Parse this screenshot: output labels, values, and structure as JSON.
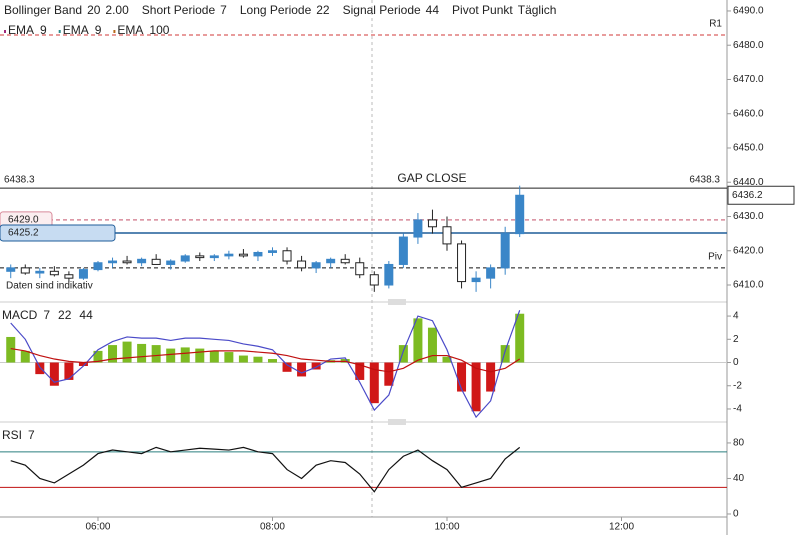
{
  "chart_data": [
    {
      "type": "candlestick",
      "header": [
        {
          "name": "Bollinger Band",
          "params": [
            "20",
            "2.00"
          ]
        },
        {
          "name": "Short Periode",
          "params": [
            "7"
          ]
        },
        {
          "name": "Long Periode",
          "params": [
            "22"
          ]
        },
        {
          "name": "Signal Periode",
          "params": [
            "44"
          ]
        },
        {
          "name": "Pivot Punkt",
          "params": [
            "Täglich"
          ]
        }
      ],
      "ema": [
        {
          "name": "EMA",
          "period": "9",
          "color": "#a0287a"
        },
        {
          "name": "EMA",
          "period": "9",
          "color": "#2a8a8a"
        },
        {
          "name": "EMA",
          "period": "100",
          "color": "#b86a1c"
        }
      ],
      "note": "Daten sind indikativ",
      "x": [
        5.0,
        5.1667,
        5.3333,
        5.5,
        5.6667,
        5.8333,
        6.0,
        6.1667,
        6.3333,
        6.5,
        6.6667,
        6.8333,
        7.0,
        7.1667,
        7.3333,
        7.5,
        7.6667,
        7.8333,
        8.0,
        8.1667,
        8.3333,
        8.5,
        8.6667,
        8.8333,
        9.0,
        9.1667,
        9.3333,
        9.5,
        9.6667,
        9.8333,
        10.0,
        10.1667,
        10.3333,
        10.5,
        10.6667,
        10.8333
      ],
      "open": [
        6414,
        6415,
        6413.5,
        6414,
        6413,
        6412,
        6414.5,
        6416.5,
        6417,
        6416.5,
        6417.5,
        6416,
        6417,
        6418.5,
        6418,
        6418.5,
        6419,
        6418.5,
        6419.5,
        6420,
        6417,
        6415,
        6416.5,
        6417.5,
        6416.5,
        6413,
        6410,
        6416,
        6424,
        6429,
        6427,
        6422,
        6411,
        6412,
        6415,
        6425
      ],
      "high": [
        6416,
        6416,
        6415,
        6415.5,
        6414,
        6415,
        6417,
        6418,
        6418.5,
        6418,
        6419,
        6417.5,
        6419,
        6419.5,
        6419,
        6420,
        6420.5,
        6420,
        6421,
        6421,
        6418.5,
        6417,
        6418,
        6419,
        6418,
        6414,
        6417,
        6425,
        6431,
        6432,
        6430,
        6423,
        6414,
        6416,
        6427,
        6439
      ],
      "low": [
        6412,
        6413,
        6412,
        6412.5,
        6411,
        6411.5,
        6414,
        6415,
        6416,
        6415.5,
        6416,
        6414.5,
        6416.5,
        6417,
        6417,
        6417.5,
        6418,
        6417,
        6418.5,
        6416,
        6414,
        6413.5,
        6415,
        6416,
        6412,
        6408,
        6409,
        6415,
        6422,
        6425,
        6420,
        6409,
        6408,
        6409,
        6413,
        6424
      ],
      "close": [
        6415,
        6413.5,
        6414,
        6413,
        6412,
        6414.5,
        6416.5,
        6417,
        6416.5,
        6417.5,
        6416,
        6417,
        6418.5,
        6418,
        6418.5,
        6419,
        6418.5,
        6419.5,
        6420,
        6417,
        6415,
        6416.5,
        6417.5,
        6416.5,
        6413,
        6410,
        6416,
        6424,
        6429,
        6427,
        6422,
        6411,
        6412,
        6415,
        6425,
        6436.2
      ],
      "last_label": "6436.2",
      "up_color": "#3a86c8",
      "down_color": "#222222",
      "xlim": [
        4.877,
        13.209
      ],
      "xticks": [
        {
          "value": 6,
          "label": "06:00"
        },
        {
          "value": 8,
          "label": "08:00"
        },
        {
          "value": 10,
          "label": "10:00"
        },
        {
          "value": 12,
          "label": "12:00"
        }
      ],
      "ylim": [
        6406.5,
        6493.2
      ],
      "yticks": [
        {
          "value": 6410,
          "label": "6410.0"
        },
        {
          "value": 6420,
          "label": "6420.0"
        },
        {
          "value": 6430,
          "label": "6430.0"
        },
        {
          "value": 6440,
          "label": "6440.0"
        },
        {
          "value": 6450,
          "label": "6450.0"
        },
        {
          "value": 6460,
          "label": "6460.0"
        },
        {
          "value": 6470,
          "label": "6470.0"
        },
        {
          "value": 6480,
          "label": "6480.0"
        },
        {
          "value": 6490,
          "label": "6490.0"
        }
      ],
      "levels": [
        {
          "value": 6483,
          "label": "R1",
          "color": "#d23a3a",
          "style": "dashed"
        },
        {
          "value": 6438.3,
          "label": "6438.3",
          "annotation": "GAP CLOSE",
          "color": "#222222",
          "style": "solid"
        },
        {
          "value": 6429,
          "label": "6429.0",
          "color": "#d88a9a",
          "style": "dashed",
          "box": true
        },
        {
          "value": 6425.2,
          "label": "6425.2",
          "color": "#1f5d99",
          "style": "solid",
          "box": true
        },
        {
          "value": 6415,
          "label": "Piv",
          "color": "#111111",
          "style": "dashed"
        }
      ]
    },
    {
      "type": "macd",
      "title": "MACD",
      "params": [
        "7",
        "22",
        "44"
      ],
      "param_colors": [
        "#c00000",
        "#c00000",
        "#c00000"
      ],
      "histogram": [
        2.2,
        1.0,
        -1.0,
        -2.0,
        -1.5,
        -0.3,
        1.0,
        1.5,
        1.8,
        1.6,
        1.5,
        1.2,
        1.3,
        1.2,
        1.0,
        0.9,
        0.6,
        0.5,
        0.3,
        -0.8,
        -1.2,
        -0.6,
        0.2,
        0.3,
        -1.5,
        -3.5,
        -2.0,
        1.5,
        3.8,
        3.0,
        0.5,
        -2.5,
        -4.2,
        -2.5,
        1.5,
        4.2
      ],
      "macd": [
        3.4,
        2.0,
        -0.4,
        -1.7,
        -1.4,
        -0.3,
        1.1,
        1.8,
        2.2,
        2.1,
        2.1,
        1.9,
        2.1,
        2.1,
        2.0,
        1.9,
        1.6,
        1.4,
        1.1,
        -0.2,
        -0.9,
        -0.4,
        0.3,
        0.4,
        -1.7,
        -4.1,
        -2.8,
        1.0,
        4.0,
        3.6,
        1.1,
        -2.3,
        -4.7,
        -3.3,
        1.0,
        4.5
      ],
      "signal": [
        1.2,
        1.0,
        0.6,
        0.3,
        0.1,
        0,
        0.1,
        0.3,
        0.4,
        0.5,
        0.6,
        0.7,
        0.8,
        0.9,
        1.0,
        1.0,
        1.0,
        0.9,
        0.8,
        0.6,
        0.3,
        0.2,
        0.1,
        0.1,
        -0.2,
        -0.6,
        -0.8,
        -0.5,
        0.2,
        0.6,
        0.6,
        0.2,
        -0.5,
        -0.8,
        -0.5,
        0.3
      ],
      "pos_color": "#7dbb22",
      "neg_color": "#d01818",
      "macd_color": "#4a4ac8",
      "signal_color": "#c01010",
      "ylim": [
        -4.95,
        4.78
      ],
      "yticks": [
        4,
        2,
        0,
        -2,
        -4
      ]
    },
    {
      "type": "rsi",
      "title": "RSI",
      "params": [
        "7"
      ],
      "values": [
        60,
        55,
        40,
        35,
        45,
        55,
        68,
        72,
        70,
        68,
        75,
        70,
        72,
        74,
        73,
        72,
        75,
        70,
        68,
        50,
        40,
        55,
        60,
        58,
        45,
        25,
        50,
        65,
        72,
        60,
        50,
        30,
        35,
        40,
        62,
        75
      ],
      "color": "#111111",
      "levels": [
        {
          "value": 70,
          "color": "#2a7f7f"
        },
        {
          "value": 30,
          "color": "#c01010"
        }
      ],
      "ylim": [
        -3.4,
        100.2
      ],
      "yticks": [
        0,
        40,
        80
      ]
    }
  ]
}
